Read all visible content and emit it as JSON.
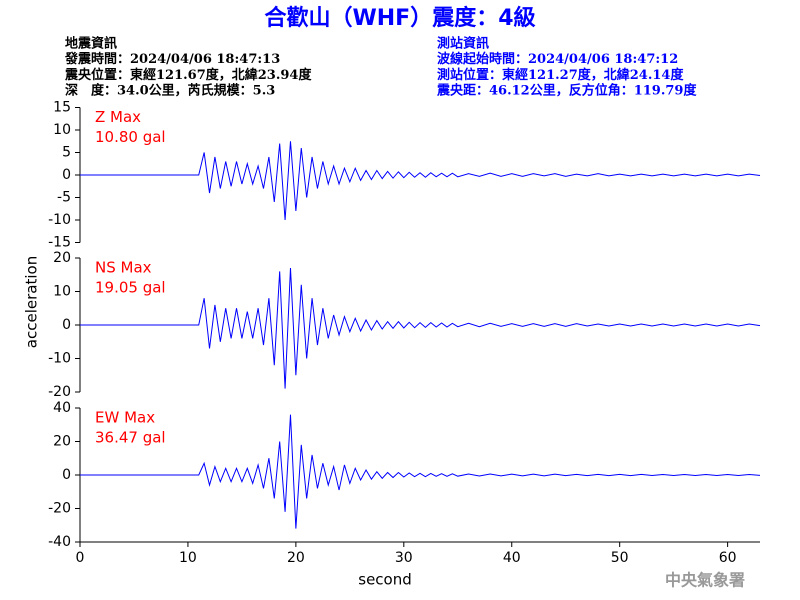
{
  "chart_data": {
    "type": "line",
    "title": "合歡山（WHF）震度：4級",
    "info_left": [
      "地震資訊",
      "發震時間：2024/04/06 18:47:13",
      "震央位置：東經121.67度，北緯23.94度",
      "深　度：34.0公里，芮氏規模：5.3"
    ],
    "info_right": [
      "測站資訊",
      "波線起始時間：2024/04/06 18:47:12",
      "測站位置：東經121.27度，北緯24.14度",
      "震央距：46.12公里，反方位角：119.79度"
    ],
    "footer": "中央氣象署",
    "x_label": "second",
    "y_label": "acceleration",
    "xlim": [
      0,
      63
    ],
    "xticks": [
      0,
      10,
      20,
      30,
      40,
      50,
      60
    ],
    "x": [
      0,
      11,
      11.5,
      12,
      12.5,
      13,
      13.5,
      14,
      14.5,
      15,
      15.5,
      16,
      16.5,
      17,
      17.5,
      18,
      18.5,
      19,
      19.5,
      20,
      20.5,
      21,
      21.5,
      22,
      22.5,
      23,
      23.5,
      24,
      24.5,
      25,
      25.5,
      26,
      26.5,
      27,
      27.5,
      28,
      28.5,
      29,
      29.5,
      30,
      30.5,
      31,
      31.5,
      32,
      32.5,
      33,
      33.5,
      34,
      34.5,
      35,
      36,
      37,
      38,
      39,
      40,
      41,
      42,
      43,
      44,
      45,
      46,
      47,
      48,
      49,
      50,
      51,
      52,
      53,
      54,
      55,
      56,
      57,
      58,
      59,
      60,
      61,
      62,
      63
    ],
    "series": [
      {
        "name": "Z Max",
        "max_label": "10.80 gal",
        "color": "#0000ff",
        "ylim": [
          -15,
          15
        ],
        "yticks": [
          -15,
          -10,
          -5,
          0,
          5,
          10,
          15
        ],
        "values": [
          0,
          0,
          5,
          -4,
          4,
          -3,
          3,
          -2.5,
          3,
          -2,
          2.5,
          -2,
          2,
          -3,
          4,
          -6,
          7,
          -10,
          7.5,
          -8,
          6,
          -5,
          4,
          -3,
          3,
          -2,
          2,
          -2,
          1.5,
          -1.5,
          1.5,
          -1.2,
          1,
          -1,
          1,
          -0.8,
          0.8,
          -0.7,
          0.7,
          -0.6,
          0.6,
          -0.5,
          0.5,
          -0.5,
          0.5,
          -0.4,
          0.4,
          -0.4,
          0.4,
          -0.4,
          0.3,
          -0.3,
          0.4,
          -0.3,
          0.3,
          -0.3,
          0.3,
          -0.2,
          0.3,
          -0.3,
          0.2,
          -0.2,
          0.3,
          -0.2,
          0.2,
          -0.2,
          0.2,
          -0.2,
          0.2,
          -0.2,
          0.2,
          -0.2,
          0.2,
          -0.2,
          0.2,
          -0.2,
          0.2,
          -0.1
        ]
      },
      {
        "name": "NS Max",
        "max_label": "19.05 gal",
        "color": "#0000ff",
        "ylim": [
          -20,
          20
        ],
        "yticks": [
          -20,
          -10,
          0,
          10,
          20
        ],
        "values": [
          0,
          0,
          8,
          -7,
          6,
          -5,
          5,
          -4,
          5,
          -4,
          4,
          -4,
          5,
          -6,
          8,
          -12,
          16,
          -19,
          17,
          -15,
          12,
          -10,
          8,
          -6,
          5,
          -4,
          3,
          -3,
          2.5,
          -2,
          2,
          -1.8,
          1.5,
          -1.5,
          1.3,
          -1.2,
          1,
          -1,
          1,
          -0.9,
          0.8,
          -0.8,
          0.7,
          -0.7,
          0.7,
          -0.6,
          0.6,
          -0.6,
          0.5,
          -0.5,
          0.5,
          -0.5,
          0.5,
          -0.4,
          0.4,
          -0.4,
          0.4,
          -0.4,
          0.4,
          -0.4,
          0.4,
          -0.3,
          0.3,
          -0.3,
          0.3,
          -0.3,
          0.3,
          -0.3,
          0.3,
          -0.3,
          0.3,
          -0.3,
          0.3,
          -0.3,
          0.3,
          -0.3,
          0.3,
          -0.2
        ]
      },
      {
        "name": "EW Max",
        "max_label": "36.47 gal",
        "color": "#0000ff",
        "ylim": [
          -40,
          40
        ],
        "yticks": [
          -40,
          -20,
          0,
          20,
          40
        ],
        "values": [
          0,
          0,
          7,
          -6,
          5,
          -4,
          4,
          -4,
          4,
          -4,
          4,
          -5,
          6,
          -8,
          10,
          -14,
          20,
          -22,
          36,
          -32,
          18,
          -14,
          12,
          -8,
          7,
          -6,
          5,
          -9,
          6,
          -5,
          4,
          -3,
          3,
          -2.5,
          2,
          -2,
          1.5,
          -1.5,
          1.5,
          -1.2,
          1.2,
          -1,
          1,
          -1,
          0.9,
          -0.8,
          0.8,
          -0.8,
          0.7,
          -0.7,
          0.6,
          -0.6,
          0.6,
          -0.5,
          0.5,
          -0.5,
          0.5,
          -0.5,
          0.5,
          -0.4,
          0.4,
          -0.4,
          0.4,
          -0.4,
          0.4,
          -0.4,
          0.4,
          -0.3,
          0.3,
          -0.3,
          0.3,
          -0.3,
          0.3,
          -0.3,
          0.3,
          -0.3,
          0.3,
          -0.2
        ]
      }
    ]
  }
}
